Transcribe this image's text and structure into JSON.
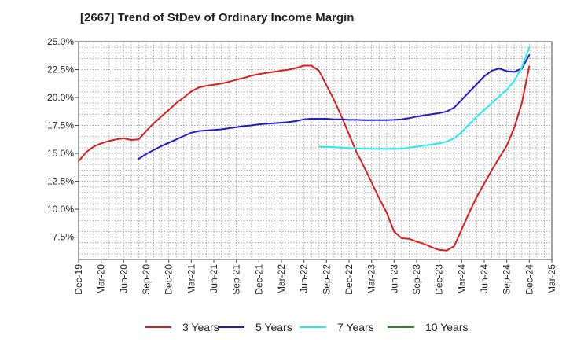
{
  "header": {
    "title": "[2667]  Trend of StDev of Ordinary Income Margin"
  },
  "chart_data": {
    "type": "line",
    "title": "[2667]  Trend of StDev of Ordinary Income Margin",
    "xlabel": "",
    "ylabel": "",
    "x_tick_labels": [
      "Dec-19",
      "Mar-20",
      "Jun-20",
      "Sep-20",
      "Dec-20",
      "Mar-21",
      "Jun-21",
      "Sep-21",
      "Dec-21",
      "Mar-22",
      "Jun-22",
      "Sep-22",
      "Dec-22",
      "Mar-23",
      "Jun-23",
      "Sep-23",
      "Dec-23",
      "Mar-24",
      "Jun-24",
      "Sep-24",
      "Dec-24",
      "Mar-25"
    ],
    "y_tick_labels": [
      "7.5%",
      "10.0%",
      "12.5%",
      "15.0%",
      "17.5%",
      "20.0%",
      "22.5%",
      "25.0%"
    ],
    "y_ticks": [
      7.5,
      10.0,
      12.5,
      15.0,
      17.5,
      20.0,
      22.5,
      25.0
    ],
    "ylim": [
      5.5,
      25.0
    ],
    "x_range": [
      "Dec-19",
      "Mar-25"
    ],
    "grid": true,
    "legend_position": "bottom",
    "series": [
      {
        "name": "3 Years",
        "color": "#dd1c1c",
        "points": [
          [
            "Dec-19",
            14.3
          ],
          [
            "Jan-20",
            15.1
          ],
          [
            "Feb-20",
            15.6
          ],
          [
            "Mar-20",
            15.9
          ],
          [
            "Apr-20",
            16.1
          ],
          [
            "May-20",
            16.25
          ],
          [
            "Jun-20",
            16.35
          ],
          [
            "Jul-20",
            16.2
          ],
          [
            "Aug-20",
            16.25
          ],
          [
            "Sep-20",
            17.0
          ],
          [
            "Oct-20",
            17.7
          ],
          [
            "Nov-20",
            18.3
          ],
          [
            "Dec-20",
            18.9
          ],
          [
            "Jan-21",
            19.5
          ],
          [
            "Feb-21",
            20.0
          ],
          [
            "Mar-21",
            20.55
          ],
          [
            "Apr-21",
            20.9
          ],
          [
            "May-21",
            21.05
          ],
          [
            "Jun-21",
            21.15
          ],
          [
            "Jul-21",
            21.25
          ],
          [
            "Aug-21",
            21.4
          ],
          [
            "Sep-21",
            21.6
          ],
          [
            "Oct-21",
            21.75
          ],
          [
            "Nov-21",
            21.95
          ],
          [
            "Dec-21",
            22.1
          ],
          [
            "Jan-22",
            22.2
          ],
          [
            "Feb-22",
            22.3
          ],
          [
            "Mar-22",
            22.4
          ],
          [
            "Apr-22",
            22.5
          ],
          [
            "May-22",
            22.65
          ],
          [
            "Jun-22",
            22.85
          ],
          [
            "Jul-22",
            22.85
          ],
          [
            "Aug-22",
            22.4
          ],
          [
            "Sep-22",
            21.1
          ],
          [
            "Oct-22",
            19.8
          ],
          [
            "Nov-22",
            18.3
          ],
          [
            "Dec-22",
            16.7
          ],
          [
            "Jan-23",
            15.1
          ],
          [
            "Feb-23",
            13.8
          ],
          [
            "Mar-23",
            12.4
          ],
          [
            "Apr-23",
            11.0
          ],
          [
            "May-23",
            9.7
          ],
          [
            "Jun-23",
            8.0
          ],
          [
            "Jul-23",
            7.4
          ],
          [
            "Aug-23",
            7.35
          ],
          [
            "Sep-23",
            7.1
          ],
          [
            "Oct-23",
            6.9
          ],
          [
            "Nov-23",
            6.6
          ],
          [
            "Dec-23",
            6.35
          ],
          [
            "Jan-24",
            6.3
          ],
          [
            "Feb-24",
            6.7
          ],
          [
            "Mar-24",
            8.2
          ],
          [
            "Apr-24",
            9.7
          ],
          [
            "May-24",
            11.1
          ],
          [
            "Jun-24",
            12.3
          ],
          [
            "Jul-24",
            13.5
          ],
          [
            "Aug-24",
            14.6
          ],
          [
            "Sep-24",
            15.7
          ],
          [
            "Oct-24",
            17.3
          ],
          [
            "Nov-24",
            19.5
          ],
          [
            "Dec-24",
            22.8
          ]
        ]
      },
      {
        "name": "5 Years",
        "color": "#1c1ccc",
        "points": [
          [
            "Aug-20",
            14.5
          ],
          [
            "Sep-20",
            14.95
          ],
          [
            "Oct-20",
            15.3
          ],
          [
            "Nov-20",
            15.65
          ],
          [
            "Dec-20",
            15.95
          ],
          [
            "Jan-21",
            16.25
          ],
          [
            "Feb-21",
            16.55
          ],
          [
            "Mar-21",
            16.85
          ],
          [
            "Apr-21",
            17.0
          ],
          [
            "May-21",
            17.05
          ],
          [
            "Jun-21",
            17.1
          ],
          [
            "Jul-21",
            17.15
          ],
          [
            "Aug-21",
            17.25
          ],
          [
            "Sep-21",
            17.35
          ],
          [
            "Oct-21",
            17.45
          ],
          [
            "Nov-21",
            17.5
          ],
          [
            "Dec-21",
            17.6
          ],
          [
            "Jan-22",
            17.65
          ],
          [
            "Feb-22",
            17.7
          ],
          [
            "Mar-22",
            17.75
          ],
          [
            "Apr-22",
            17.8
          ],
          [
            "May-22",
            17.9
          ],
          [
            "Jun-22",
            18.05
          ],
          [
            "Jul-22",
            18.1
          ],
          [
            "Aug-22",
            18.1
          ],
          [
            "Sep-22",
            18.1
          ],
          [
            "Oct-22",
            18.05
          ],
          [
            "Nov-22",
            18.05
          ],
          [
            "Dec-22",
            18.0
          ],
          [
            "Jan-23",
            18.0
          ],
          [
            "Feb-23",
            17.98
          ],
          [
            "Mar-23",
            17.98
          ],
          [
            "Apr-23",
            17.98
          ],
          [
            "May-23",
            17.98
          ],
          [
            "Jun-23",
            18.0
          ],
          [
            "Jul-23",
            18.05
          ],
          [
            "Aug-23",
            18.15
          ],
          [
            "Sep-23",
            18.3
          ],
          [
            "Oct-23",
            18.4
          ],
          [
            "Nov-23",
            18.5
          ],
          [
            "Dec-23",
            18.6
          ],
          [
            "Jan-24",
            18.75
          ],
          [
            "Feb-24",
            19.1
          ],
          [
            "Mar-24",
            19.8
          ],
          [
            "Apr-24",
            20.5
          ],
          [
            "May-24",
            21.2
          ],
          [
            "Jun-24",
            21.9
          ],
          [
            "Jul-24",
            22.4
          ],
          [
            "Aug-24",
            22.6
          ],
          [
            "Sep-24",
            22.35
          ],
          [
            "Oct-24",
            22.3
          ],
          [
            "Nov-24",
            22.6
          ],
          [
            "Dec-24",
            23.8
          ]
        ]
      },
      {
        "name": "7 Years",
        "color": "#22eeee",
        "points": [
          [
            "Aug-22",
            15.6
          ],
          [
            "Sep-22",
            15.58
          ],
          [
            "Oct-22",
            15.55
          ],
          [
            "Nov-22",
            15.5
          ],
          [
            "Dec-22",
            15.48
          ],
          [
            "Jan-23",
            15.45
          ],
          [
            "Feb-23",
            15.42
          ],
          [
            "Mar-23",
            15.4
          ],
          [
            "Apr-23",
            15.4
          ],
          [
            "May-23",
            15.4
          ],
          [
            "Jun-23",
            15.4
          ],
          [
            "Jul-23",
            15.42
          ],
          [
            "Aug-23",
            15.5
          ],
          [
            "Sep-23",
            15.6
          ],
          [
            "Oct-23",
            15.7
          ],
          [
            "Nov-23",
            15.8
          ],
          [
            "Dec-23",
            15.9
          ],
          [
            "Jan-24",
            16.05
          ],
          [
            "Feb-24",
            16.35
          ],
          [
            "Mar-24",
            16.9
          ],
          [
            "Apr-24",
            17.6
          ],
          [
            "May-24",
            18.3
          ],
          [
            "Jun-24",
            18.9
          ],
          [
            "Jul-24",
            19.5
          ],
          [
            "Aug-24",
            20.1
          ],
          [
            "Sep-24",
            20.7
          ],
          [
            "Oct-24",
            21.5
          ],
          [
            "Nov-24",
            22.7
          ],
          [
            "Dec-24",
            24.5
          ]
        ]
      },
      {
        "name": "10 Years",
        "color": "#1e8c1e",
        "points": []
      }
    ]
  }
}
